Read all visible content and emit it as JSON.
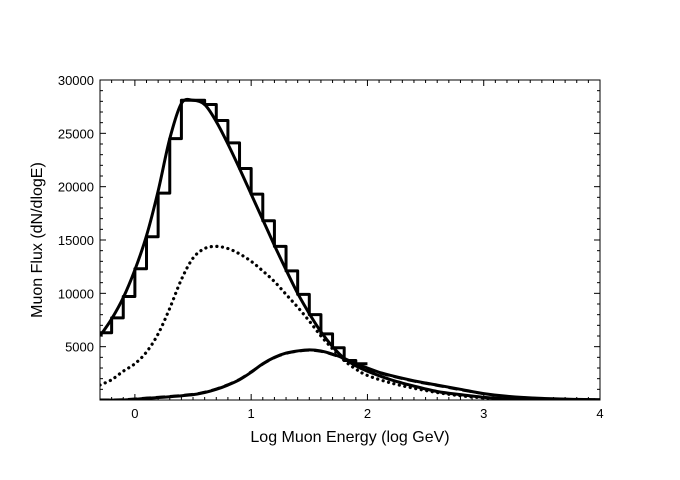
{
  "chart_data": {
    "type": "line",
    "title": "",
    "xlabel": "Log Muon Energy (log GeV)",
    "ylabel": "Muon Flux (dN/dlogE)",
    "xlim": [
      -0.3,
      4
    ],
    "ylim": [
      0,
      30000
    ],
    "xticks": [
      0,
      1,
      2,
      3,
      4
    ],
    "yticks": [
      5000,
      10000,
      15000,
      20000,
      25000,
      30000
    ],
    "xtick_labels": [
      "0",
      "1",
      "2",
      "3",
      "4"
    ],
    "ytick_labels": [
      "5000",
      "10000",
      "15000",
      "20000",
      "25000",
      "30000"
    ],
    "grid": false,
    "legend": "none",
    "series": [
      {
        "style": "step",
        "color": "#000000",
        "bin_width": 0.1,
        "x": [
          -0.3,
          -0.2,
          -0.1,
          0.0,
          0.1,
          0.2,
          0.3,
          0.4,
          0.5,
          0.6,
          0.7,
          0.8,
          0.9,
          1.0,
          1.1,
          1.2,
          1.3,
          1.4,
          1.5,
          1.6,
          1.7,
          1.8,
          1.9
        ],
        "values": [
          6300,
          7700,
          9700,
          12300,
          15300,
          19400,
          24500,
          28100,
          28100,
          27700,
          26200,
          24100,
          21700,
          19300,
          16800,
          14400,
          12100,
          9900,
          8000,
          6200,
          4900,
          3700,
          3400
        ]
      },
      {
        "style": "solid",
        "color": "#000000",
        "x": [
          -0.3,
          -0.2,
          -0.1,
          0.0,
          0.1,
          0.2,
          0.3,
          0.4,
          0.5,
          0.6,
          0.7,
          0.8,
          0.9,
          1.0,
          1.1,
          1.2,
          1.3,
          1.4,
          1.5,
          1.6,
          1.7,
          1.8,
          1.9,
          2.0,
          2.2,
          2.4,
          2.6,
          2.8,
          3.0,
          3.2,
          3.5,
          3.8,
          4.0
        ],
        "values": [
          6000,
          7600,
          9600,
          12200,
          15400,
          19600,
          24500,
          27800,
          28100,
          27700,
          26100,
          24000,
          21700,
          19300,
          16900,
          14500,
          12200,
          10000,
          8100,
          6400,
          5000,
          3900,
          3200,
          2700,
          1900,
          1300,
          800,
          500,
          250,
          120,
          50,
          20,
          10
        ]
      },
      {
        "style": "dotted",
        "color": "#000000",
        "x": [
          -0.3,
          -0.2,
          -0.1,
          0.0,
          0.1,
          0.2,
          0.3,
          0.4,
          0.5,
          0.6,
          0.7,
          0.8,
          0.9,
          1.0,
          1.1,
          1.2,
          1.3,
          1.4,
          1.5,
          1.6,
          1.7,
          1.8,
          1.9,
          2.0,
          2.2,
          2.4,
          2.6,
          2.8,
          3.0,
          3.2,
          3.5,
          3.8,
          4.0
        ],
        "values": [
          1400,
          1900,
          2700,
          3400,
          4500,
          6200,
          8600,
          11300,
          13300,
          14200,
          14400,
          14200,
          13700,
          13000,
          12100,
          11100,
          9900,
          8700,
          7400,
          6000,
          4800,
          3700,
          2900,
          2300,
          1600,
          1100,
          700,
          400,
          200,
          100,
          40,
          15,
          10
        ]
      },
      {
        "style": "solid",
        "color": "#000000",
        "x": [
          -0.3,
          -0.1,
          0.1,
          0.3,
          0.5,
          0.6,
          0.7,
          0.8,
          0.9,
          1.0,
          1.1,
          1.2,
          1.3,
          1.4,
          1.5,
          1.6,
          1.7,
          1.8,
          1.9,
          2.0,
          2.1,
          2.2,
          2.4,
          2.6,
          2.8,
          3.0,
          3.2,
          3.5,
          3.8,
          4.0
        ],
        "values": [
          0,
          0,
          150,
          300,
          500,
          700,
          1000,
          1400,
          1900,
          2600,
          3400,
          4000,
          4400,
          4600,
          4700,
          4600,
          4300,
          3900,
          3400,
          3000,
          2600,
          2300,
          1800,
          1400,
          1000,
          600,
          350,
          150,
          60,
          20
        ]
      },
      {
        "style": "dashed",
        "color": "#000000",
        "x": [
          -0.3,
          -0.1,
          0.1,
          0.3,
          0.5,
          0.6,
          0.7,
          0.8,
          0.9,
          1.0,
          1.1,
          1.2,
          1.3,
          1.4,
          1.5,
          1.6,
          1.7,
          1.8,
          1.9,
          2.0,
          2.1,
          2.2,
          2.4,
          2.6,
          2.8,
          3.0,
          3.2,
          3.5,
          3.8,
          4.0
        ],
        "values": [
          0,
          50,
          200,
          350,
          550,
          750,
          1050,
          1450,
          1950,
          2650,
          3350,
          3950,
          4350,
          4550,
          4650,
          4550,
          4250,
          3850,
          3350,
          2950,
          2550,
          2250,
          1750,
          1350,
          950,
          580,
          330,
          140,
          55,
          20
        ]
      }
    ]
  }
}
